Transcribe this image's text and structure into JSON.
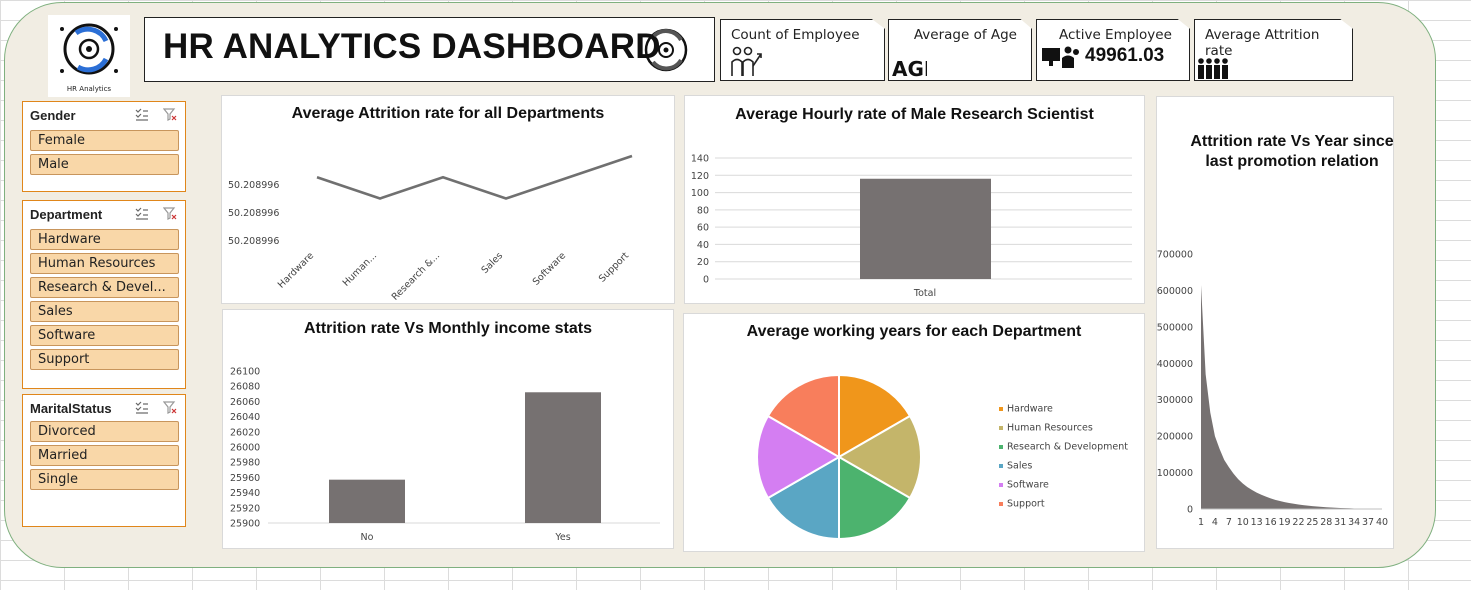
{
  "header": {
    "logo_caption": "HR Analytics",
    "title": "HR ANALYTICS DASHBOARD"
  },
  "kpis": {
    "count_label": "Count of Employee",
    "age_label": "Average of Age",
    "active_label": "Active Employee",
    "active_value": "49961.03",
    "attrition_label": "Average Attrition rate"
  },
  "slicers": {
    "gender": {
      "title": "Gender",
      "items": [
        "Female",
        "Male"
      ]
    },
    "department": {
      "title": "Department",
      "items": [
        "Hardware",
        "Human Resources",
        "Research & Devel...",
        "Sales",
        "Software",
        "Support"
      ]
    },
    "marital": {
      "title": "MaritalStatus",
      "items": [
        "Divorced",
        "Married",
        "Single"
      ]
    }
  },
  "colors": {
    "bar": "#767171",
    "line": "#707070",
    "slicer_item": "#f9d7a8",
    "slicer_border": "#e0861a",
    "board_bg": "#f1ede3"
  },
  "chart_data": [
    {
      "type": "line",
      "title": "Average Attrition rate for all Departments",
      "categories": [
        "Hardware",
        "Human...",
        "Research &...",
        "Sales",
        "Software",
        "Support"
      ],
      "values": [
        50.2089962,
        50.2089958,
        50.2089962,
        50.2089958,
        50.2089962,
        50.2089966
      ],
      "yticks": [
        "50.208996",
        "50.208996",
        "50.208996"
      ],
      "ylim": [
        50.208995,
        50.2089966
      ]
    },
    {
      "type": "bar",
      "title": "Average Hourly rate of Male Research Scientist",
      "categories": [
        "Total"
      ],
      "values": [
        116
      ],
      "ylim": [
        0,
        140
      ],
      "yticks": [
        0,
        20,
        40,
        60,
        80,
        100,
        120,
        140
      ],
      "grid": true
    },
    {
      "type": "bar",
      "title": "Attrition rate Vs Monthly income stats",
      "categories": [
        "No",
        "Yes"
      ],
      "values": [
        25957,
        26072
      ],
      "ylim": [
        25900,
        26100
      ],
      "yticks": [
        25900,
        25920,
        25940,
        25960,
        25980,
        26000,
        26020,
        26040,
        26060,
        26080,
        26100
      ]
    },
    {
      "type": "pie",
      "title": "Average working years for each Department",
      "legend_position": "right",
      "labels": [
        "Hardware",
        "Human Resources",
        "Research & Development",
        "Sales",
        "Software",
        "Support"
      ],
      "values": [
        1,
        1,
        1,
        1,
        1,
        1
      ],
      "colors": [
        "#f0961b",
        "#c4b56a",
        "#4cb36e",
        "#5aa6c4",
        "#d47ef2",
        "#f87e5c"
      ]
    },
    {
      "type": "area",
      "title": "Attrition rate Vs Year since last promotion relation",
      "x": [
        1,
        2,
        3,
        4,
        5,
        6,
        7,
        8,
        9,
        10,
        11,
        12,
        13,
        14,
        15,
        16,
        17,
        18,
        19,
        20,
        21,
        22,
        23,
        24,
        25,
        26,
        27,
        28,
        29,
        30,
        31,
        32,
        33,
        34,
        35,
        36,
        37,
        38,
        39,
        40
      ],
      "values": [
        615000,
        370000,
        265000,
        200000,
        165000,
        135000,
        115000,
        97000,
        82000,
        70000,
        60000,
        52000,
        45000,
        39000,
        34000,
        29000,
        25000,
        22000,
        19000,
        16500,
        14300,
        12400,
        10700,
        9200,
        7900,
        6800,
        5800,
        4900,
        4100,
        3400,
        2800,
        2300,
        1900,
        1500,
        1200,
        900,
        700,
        500,
        350,
        200
      ],
      "xticks": [
        "1",
        "4",
        "7",
        "10",
        "13",
        "16",
        "19",
        "22",
        "25",
        "28",
        "31",
        "34",
        "37",
        "40"
      ],
      "yticks": [
        0,
        100000,
        200000,
        300000,
        400000,
        500000,
        600000,
        700000
      ],
      "ylim": [
        0,
        700000
      ]
    }
  ]
}
